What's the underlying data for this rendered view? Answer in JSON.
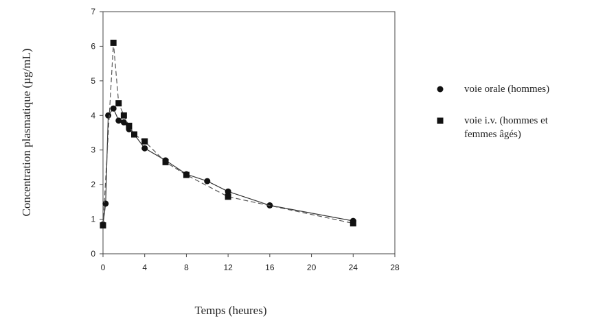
{
  "chart_data": {
    "type": "line",
    "xlabel": "Temps (heures)",
    "ylabel": "Concentration plasmatique (µg/mL)",
    "xlim": [
      0,
      28
    ],
    "ylim": [
      0,
      7
    ],
    "xticks": [
      0,
      4,
      8,
      12,
      16,
      20,
      24,
      28
    ],
    "yticks": [
      0,
      1,
      2,
      3,
      4,
      5,
      6,
      7
    ],
    "grid": false,
    "legend_position": "right",
    "series": [
      {
        "name": "voie orale (hommes)",
        "marker": "circle",
        "line_style": "solid",
        "x": [
          0,
          0.25,
          0.5,
          1,
          1.5,
          2,
          2.5,
          3,
          4,
          6,
          8,
          10,
          12,
          16,
          24
        ],
        "y": [
          0.85,
          1.45,
          4.0,
          4.2,
          3.85,
          3.8,
          3.6,
          3.45,
          3.05,
          2.7,
          2.3,
          2.1,
          1.8,
          1.4,
          0.95
        ]
      },
      {
        "name": "voie i.v. (hommes et femmes âgés)",
        "marker": "square",
        "line_style": "dashed",
        "x": [
          0,
          1,
          1.5,
          2,
          2.5,
          3,
          4,
          6,
          8,
          12,
          24
        ],
        "y": [
          0.82,
          6.1,
          4.35,
          4.0,
          3.7,
          3.45,
          3.25,
          2.65,
          2.28,
          1.65,
          0.88
        ]
      }
    ],
    "legend": [
      {
        "marker": "circle",
        "lines": [
          "voie orale (hommes)"
        ]
      },
      {
        "marker": "square",
        "lines": [
          "voie i.v. (hommes et",
          "femmes âgés)"
        ]
      }
    ]
  }
}
